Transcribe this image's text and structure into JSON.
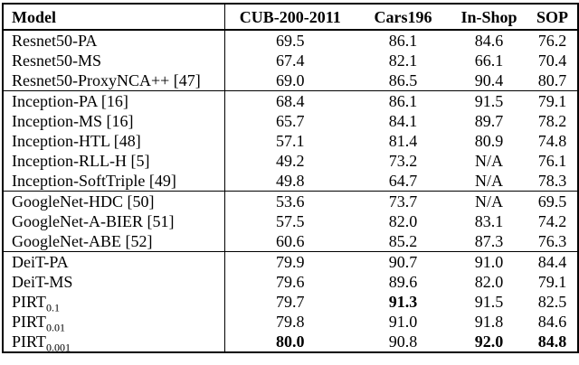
{
  "colors": {
    "text": "#000000",
    "background": "#ffffff",
    "border": "#000000"
  },
  "table": {
    "header": {
      "model_label": "Model",
      "dataset_labels": [
        "CUB-200-2011",
        "Cars196",
        "In-Shop",
        "SOP"
      ]
    },
    "groups": [
      {
        "name": "resnet50",
        "rows": [
          {
            "model": "Resnet50-PA",
            "subscript": "",
            "values": [
              "69.5",
              "86.1",
              "84.6",
              "76.2"
            ],
            "bold": [
              false,
              false,
              false,
              false
            ]
          },
          {
            "model": "Resnet50-MS",
            "subscript": "",
            "values": [
              "67.4",
              "82.1",
              "66.1",
              "70.4"
            ],
            "bold": [
              false,
              false,
              false,
              false
            ]
          },
          {
            "model": "Resnet50-ProxyNCA++ [47]",
            "subscript": "",
            "values": [
              "69.0",
              "86.5",
              "90.4",
              "80.7"
            ],
            "bold": [
              false,
              false,
              false,
              false
            ]
          }
        ]
      },
      {
        "name": "inception",
        "rows": [
          {
            "model": "Inception-PA [16]",
            "subscript": "",
            "values": [
              "68.4",
              "86.1",
              "91.5",
              "79.1"
            ],
            "bold": [
              false,
              false,
              false,
              false
            ]
          },
          {
            "model": "Inception-MS [16]",
            "subscript": "",
            "values": [
              "65.7",
              "84.1",
              "89.7",
              "78.2"
            ],
            "bold": [
              false,
              false,
              false,
              false
            ]
          },
          {
            "model": "Inception-HTL [48]",
            "subscript": "",
            "values": [
              "57.1",
              "81.4",
              "80.9",
              "74.8"
            ],
            "bold": [
              false,
              false,
              false,
              false
            ]
          },
          {
            "model": "Inception-RLL-H [5]",
            "subscript": "",
            "values": [
              "49.2",
              "73.2",
              "N/A",
              "76.1"
            ],
            "bold": [
              false,
              false,
              false,
              false
            ]
          },
          {
            "model": "Inception-SoftTriple [49]",
            "subscript": "",
            "values": [
              "49.8",
              "64.7",
              "N/A",
              "78.3"
            ],
            "bold": [
              false,
              false,
              false,
              false
            ]
          }
        ]
      },
      {
        "name": "googlenet",
        "rows": [
          {
            "model": "GoogleNet-HDC [50]",
            "subscript": "",
            "values": [
              "53.6",
              "73.7",
              "N/A",
              "69.5"
            ],
            "bold": [
              false,
              false,
              false,
              false
            ]
          },
          {
            "model": "GoogleNet-A-BIER [51]",
            "subscript": "",
            "values": [
              "57.5",
              "82.0",
              "83.1",
              "74.2"
            ],
            "bold": [
              false,
              false,
              false,
              false
            ]
          },
          {
            "model": "GoogleNet-ABE [52]",
            "subscript": "",
            "values": [
              "60.6",
              "85.2",
              "87.3",
              "76.3"
            ],
            "bold": [
              false,
              false,
              false,
              false
            ]
          }
        ]
      },
      {
        "name": "deit-pirt",
        "rows": [
          {
            "model": "DeiT-PA",
            "subscript": "",
            "values": [
              "79.9",
              "90.7",
              "91.0",
              "84.4"
            ],
            "bold": [
              false,
              false,
              false,
              false
            ]
          },
          {
            "model": "DeiT-MS",
            "subscript": "",
            "values": [
              "79.6",
              "89.6",
              "82.0",
              "79.1"
            ],
            "bold": [
              false,
              false,
              false,
              false
            ]
          },
          {
            "model": "PIRT",
            "subscript": "0.1",
            "values": [
              "79.7",
              "91.3",
              "91.5",
              "82.5"
            ],
            "bold": [
              false,
              true,
              false,
              false
            ]
          },
          {
            "model": "PIRT",
            "subscript": "0.01",
            "values": [
              "79.8",
              "91.0",
              "91.8",
              "84.6"
            ],
            "bold": [
              false,
              false,
              false,
              false
            ]
          },
          {
            "model": "PIRT",
            "subscript": "0.001",
            "values": [
              "80.0",
              "90.8",
              "92.0",
              "84.8"
            ],
            "bold": [
              true,
              false,
              true,
              true
            ]
          }
        ]
      }
    ]
  }
}
